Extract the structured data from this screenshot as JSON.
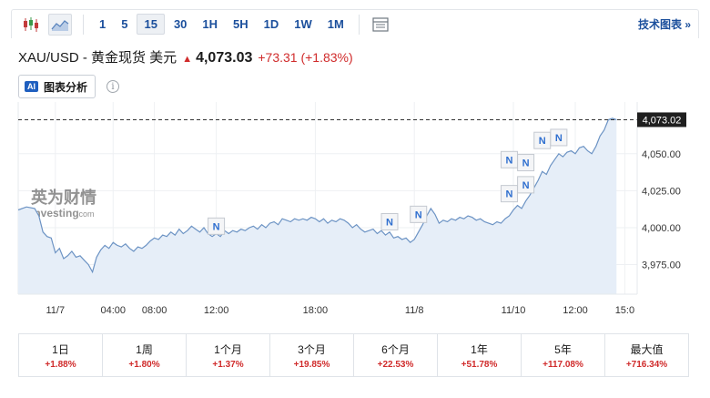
{
  "toolbar": {
    "intervals": [
      "1",
      "5",
      "15",
      "30",
      "1H",
      "5H",
      "1D",
      "1W",
      "1M"
    ],
    "active_interval": "15",
    "tech_chart_label": "技术图表 »"
  },
  "instrument": {
    "name": "XAU/USD - 黄金现货 美元",
    "price": "4,073.03",
    "change": "+73.31 (+1.83%)"
  },
  "ai_button": {
    "badge": "AI",
    "label": "图表分析"
  },
  "info_symbol": "i",
  "chart_data": {
    "type": "area",
    "watermark": {
      "cn": "英为财情",
      "en": "Investing",
      "en_suffix": ".com"
    },
    "current_price_label": "4,073.02",
    "current_price": 4073.02,
    "ylim": [
      3955,
      4085
    ],
    "yticks": [
      {
        "value": 4050,
        "label": "4,050.00"
      },
      {
        "value": 4025,
        "label": "4,025.00"
      },
      {
        "value": 4000,
        "label": "4,000.00"
      },
      {
        "value": 3975,
        "label": "3,975.00"
      }
    ],
    "xticks": [
      {
        "t": 9,
        "label": "11/7"
      },
      {
        "t": 23,
        "label": "04:00"
      },
      {
        "t": 33,
        "label": "08:00"
      },
      {
        "t": 48,
        "label": "12:00"
      },
      {
        "t": 72,
        "label": "18:00"
      },
      {
        "t": 96,
        "label": "11/8"
      },
      {
        "t": 120,
        "label": "11/10"
      },
      {
        "t": 135,
        "label": "12:00"
      },
      {
        "t": 147,
        "label": "15:0"
      }
    ],
    "xlim": [
      0,
      150
    ],
    "series": [
      {
        "points": [
          [
            0,
            4012
          ],
          [
            2,
            4014
          ],
          [
            4,
            4013
          ],
          [
            5,
            4008
          ],
          [
            6,
            3997
          ],
          [
            7,
            3994
          ],
          [
            8,
            3993
          ],
          [
            9,
            3983
          ],
          [
            10,
            3986
          ],
          [
            11,
            3979
          ],
          [
            12,
            3981
          ],
          [
            13,
            3984
          ],
          [
            14,
            3980
          ],
          [
            15,
            3981
          ],
          [
            16,
            3978
          ],
          [
            17,
            3975
          ],
          [
            18,
            3970
          ],
          [
            19,
            3980
          ],
          [
            20,
            3985
          ],
          [
            21,
            3988
          ],
          [
            22,
            3986
          ],
          [
            23,
            3990
          ],
          [
            24,
            3988
          ],
          [
            25,
            3987
          ],
          [
            26,
            3989
          ],
          [
            27,
            3986
          ],
          [
            28,
            3984
          ],
          [
            29,
            3987
          ],
          [
            30,
            3986
          ],
          [
            31,
            3988
          ],
          [
            32,
            3991
          ],
          [
            33,
            3993
          ],
          [
            34,
            3992
          ],
          [
            35,
            3995
          ],
          [
            36,
            3994
          ],
          [
            37,
            3997
          ],
          [
            38,
            3995
          ],
          [
            39,
            3999
          ],
          [
            40,
            3996
          ],
          [
            41,
            3998
          ],
          [
            42,
            4001
          ],
          [
            43,
            3999
          ],
          [
            44,
            3997
          ],
          [
            45,
            4000
          ],
          [
            46,
            3996
          ],
          [
            47,
            3994
          ],
          [
            48,
            3996
          ],
          [
            49,
            3994
          ],
          [
            50,
            3998
          ],
          [
            51,
            3996
          ],
          [
            52,
            3998
          ],
          [
            53,
            3997
          ],
          [
            54,
            3999
          ],
          [
            55,
            3998
          ],
          [
            56,
            4000
          ],
          [
            57,
            4001
          ],
          [
            58,
            3999
          ],
          [
            59,
            4002
          ],
          [
            60,
            4000
          ],
          [
            61,
            4003
          ],
          [
            62,
            4004
          ],
          [
            63,
            4002
          ],
          [
            64,
            4006
          ],
          [
            65,
            4005
          ],
          [
            66,
            4004
          ],
          [
            67,
            4006
          ],
          [
            68,
            4005
          ],
          [
            69,
            4006
          ],
          [
            70,
            4005
          ],
          [
            71,
            4007
          ],
          [
            72,
            4006
          ],
          [
            73,
            4004
          ],
          [
            74,
            4006
          ],
          [
            75,
            4003
          ],
          [
            76,
            4005
          ],
          [
            77,
            4004
          ],
          [
            78,
            4006
          ],
          [
            79,
            4005
          ],
          [
            80,
            4003
          ],
          [
            81,
            4000
          ],
          [
            82,
            4002
          ],
          [
            83,
            3999
          ],
          [
            84,
            3997
          ],
          [
            85,
            3998
          ],
          [
            86,
            3999
          ],
          [
            87,
            3996
          ],
          [
            88,
            3998
          ],
          [
            89,
            3995
          ],
          [
            90,
            3997
          ],
          [
            91,
            3993
          ],
          [
            92,
            3994
          ],
          [
            93,
            3992
          ],
          [
            94,
            3993
          ],
          [
            95,
            3990
          ],
          [
            96,
            3992
          ],
          [
            97,
            3997
          ],
          [
            98,
            4002
          ],
          [
            99,
            4008
          ],
          [
            100,
            4013
          ],
          [
            101,
            4009
          ],
          [
            102,
            4003
          ],
          [
            103,
            4005
          ],
          [
            104,
            4004
          ],
          [
            105,
            4006
          ],
          [
            106,
            4005
          ],
          [
            107,
            4007
          ],
          [
            108,
            4006
          ],
          [
            109,
            4008
          ],
          [
            110,
            4007
          ],
          [
            111,
            4005
          ],
          [
            112,
            4006
          ],
          [
            113,
            4004
          ],
          [
            114,
            4003
          ],
          [
            115,
            4002
          ],
          [
            116,
            4004
          ],
          [
            117,
            4003
          ],
          [
            118,
            4006
          ],
          [
            119,
            4008
          ],
          [
            120,
            4012
          ],
          [
            121,
            4015
          ],
          [
            122,
            4013
          ],
          [
            123,
            4018
          ],
          [
            124,
            4022
          ],
          [
            125,
            4027
          ],
          [
            126,
            4032
          ],
          [
            127,
            4038
          ],
          [
            128,
            4036
          ],
          [
            129,
            4042
          ],
          [
            130,
            4046
          ],
          [
            131,
            4050
          ],
          [
            132,
            4048
          ],
          [
            133,
            4051
          ],
          [
            134,
            4052
          ],
          [
            135,
            4050
          ],
          [
            136,
            4054
          ],
          [
            137,
            4055
          ],
          [
            138,
            4052
          ],
          [
            139,
            4050
          ],
          [
            140,
            4055
          ],
          [
            141,
            4062
          ],
          [
            142,
            4066
          ],
          [
            143,
            4073
          ],
          [
            144,
            4074
          ],
          [
            145,
            4073
          ]
        ]
      }
    ],
    "news_markers": [
      {
        "t": 48,
        "price": 4001,
        "letter": "N"
      },
      {
        "t": 90,
        "price": 4004,
        "letter": "N"
      },
      {
        "t": 97,
        "price": 4009,
        "letter": "N"
      },
      {
        "t": 119,
        "price": 4046,
        "letter": "N"
      },
      {
        "t": 123,
        "price": 4044,
        "letter": "N"
      },
      {
        "t": 119,
        "price": 4023,
        "letter": "N"
      },
      {
        "t": 123,
        "price": 4029,
        "letter": "N"
      },
      {
        "t": 127,
        "price": 4059,
        "letter": "N"
      },
      {
        "t": 131,
        "price": 4061,
        "letter": "N"
      }
    ]
  },
  "performance": [
    {
      "label": "1日",
      "value": "+1.88%"
    },
    {
      "label": "1周",
      "value": "+1.80%"
    },
    {
      "label": "1个月",
      "value": "+1.37%"
    },
    {
      "label": "3个月",
      "value": "+19.85%"
    },
    {
      "label": "6个月",
      "value": "+22.53%"
    },
    {
      "label": "1年",
      "value": "+51.78%"
    },
    {
      "label": "5年",
      "value": "+117.08%"
    },
    {
      "label": "最大值",
      "value": "+716.34%"
    }
  ],
  "colors": {
    "accent": "#1b4f9c",
    "up": "#d02b2b",
    "line": "#6c93c4",
    "fill": "#e6eef8",
    "marker_letter": "#2f6fcf"
  }
}
